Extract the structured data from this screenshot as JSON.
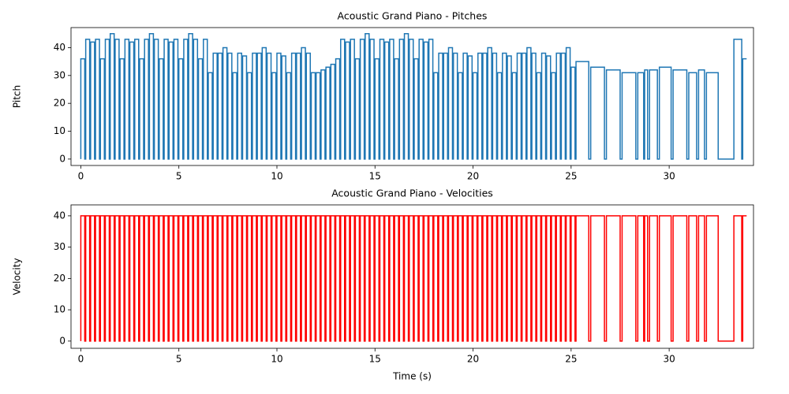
{
  "chart_data": [
    {
      "type": "step",
      "title": "Acoustic Grand Piano - Pitches",
      "y_label": "Pitch",
      "xlim": [
        -0.5,
        34.3
      ],
      "ylim": [
        -2.3,
        47.2
      ],
      "xticks": [
        0,
        5,
        10,
        15,
        20,
        25,
        30
      ],
      "yticks": [
        0,
        10,
        20,
        30,
        40
      ],
      "color": "#1f77b4",
      "x": [
        0,
        0,
        0.2,
        0.25,
        0.45,
        0.5,
        0.7,
        0.75,
        0.95,
        1,
        1.2,
        1.25,
        1.45,
        1.5,
        1.7,
        1.75,
        1.95,
        2,
        2.2,
        2.25,
        2.45,
        2.5,
        2.7,
        2.75,
        2.95,
        3,
        3.2,
        3.25,
        3.45,
        3.5,
        3.7,
        3.75,
        3.95,
        4,
        4.2,
        4.25,
        4.45,
        4.5,
        4.7,
        4.75,
        4.95,
        5,
        5.2,
        5.25,
        5.45,
        5.5,
        5.7,
        5.75,
        5.95,
        6,
        6.2,
        6.25,
        6.45,
        6.5,
        6.7,
        6.75,
        6.95,
        7,
        7.2,
        7.25,
        7.45,
        7.5,
        7.7,
        7.75,
        7.95,
        8,
        8.2,
        8.25,
        8.45,
        8.5,
        8.7,
        8.75,
        8.95,
        9,
        9.2,
        9.25,
        9.45,
        9.5,
        9.7,
        9.75,
        9.95,
        10,
        10.2,
        10.25,
        10.45,
        10.5,
        10.7,
        10.75,
        10.95,
        11,
        11.2,
        11.25,
        11.45,
        11.5,
        11.7,
        11.75,
        11.95,
        12,
        12.2,
        12.25,
        12.45,
        12.5,
        12.7,
        12.75,
        12.95,
        13,
        13.2,
        13.25,
        13.45,
        13.5,
        13.7,
        13.75,
        13.95,
        14,
        14.2,
        14.25,
        14.45,
        14.5,
        14.7,
        14.75,
        14.95,
        15,
        15.2,
        15.25,
        15.45,
        15.5,
        15.7,
        15.75,
        15.95,
        16,
        16.2,
        16.25,
        16.45,
        16.5,
        16.7,
        16.75,
        16.95,
        17,
        17.2,
        17.25,
        17.45,
        17.5,
        17.7,
        17.75,
        17.95,
        18,
        18.2,
        18.25,
        18.45,
        18.5,
        18.7,
        18.75,
        18.95,
        19,
        19.2,
        19.25,
        19.45,
        19.5,
        19.7,
        19.75,
        19.95,
        20,
        20.2,
        20.25,
        20.45,
        20.5,
        20.7,
        20.75,
        20.95,
        21,
        21.2,
        21.25,
        21.45,
        21.5,
        21.7,
        21.75,
        21.95,
        22,
        22.2,
        22.25,
        22.45,
        22.5,
        22.7,
        22.75,
        22.95,
        23,
        23.2,
        23.25,
        23.45,
        23.5,
        23.7,
        23.75,
        23.95,
        24,
        24.2,
        24.25,
        24.45,
        24.5,
        24.7,
        24.75,
        24.95,
        25,
        25.2,
        25.25,
        25.9,
        26,
        26.7,
        26.8,
        27.5,
        27.6,
        28.3,
        28.4,
        28.7,
        28.75,
        28.9,
        29,
        29.4,
        29.5,
        30.1,
        30.2,
        30.9,
        31,
        31.4,
        31.5,
        31.8,
        31.9,
        32.5,
        33.3,
        33.7,
        33.75,
        33.95
      ],
      "values": [
        0,
        36,
        0,
        43,
        0,
        42,
        0,
        43,
        0,
        36,
        0,
        43,
        0,
        45,
        0,
        43,
        0,
        36,
        0,
        43,
        0,
        42,
        0,
        43,
        0,
        36,
        0,
        43,
        0,
        45,
        0,
        43,
        0,
        36,
        0,
        43,
        0,
        42,
        0,
        43,
        0,
        36,
        0,
        43,
        0,
        45,
        0,
        43,
        0,
        36,
        0,
        43,
        0,
        31,
        0,
        38,
        0,
        38,
        0,
        40,
        0,
        38,
        0,
        31,
        0,
        38,
        0,
        37,
        0,
        31,
        0,
        38,
        0,
        38,
        0,
        40,
        0,
        38,
        0,
        31,
        0,
        38,
        0,
        37,
        0,
        31,
        0,
        38,
        0,
        38,
        0,
        40,
        0,
        38,
        0,
        31,
        0,
        31,
        0,
        32,
        0,
        33,
        0,
        34,
        0,
        36,
        0,
        43,
        0,
        42,
        0,
        43,
        0,
        36,
        0,
        43,
        0,
        45,
        0,
        43,
        0,
        36,
        0,
        43,
        0,
        42,
        0,
        43,
        0,
        36,
        0,
        43,
        0,
        45,
        0,
        43,
        0,
        36,
        0,
        43,
        0,
        42,
        0,
        43,
        0,
        31,
        0,
        38,
        0,
        38,
        0,
        40,
        0,
        38,
        0,
        31,
        0,
        38,
        0,
        37,
        0,
        31,
        0,
        38,
        0,
        38,
        0,
        40,
        0,
        38,
        0,
        31,
        0,
        38,
        0,
        37,
        0,
        31,
        0,
        38,
        0,
        38,
        0,
        40,
        0,
        38,
        0,
        31,
        0,
        38,
        0,
        37,
        0,
        31,
        0,
        38,
        0,
        38,
        0,
        40,
        0,
        33,
        0,
        35,
        0,
        33,
        0,
        32,
        0,
        31,
        0,
        31,
        0,
        32,
        0,
        32,
        0,
        33,
        0,
        32,
        0,
        31,
        0,
        32,
        0,
        31,
        0,
        43,
        0,
        36,
        36
      ]
    },
    {
      "type": "step",
      "title": "Acoustic Grand Piano - Velocities",
      "y_label": "Velocity",
      "x_label": "Time (s)",
      "xlim": [
        -0.5,
        34.3
      ],
      "ylim": [
        -2.3,
        43.5
      ],
      "xticks": [
        0,
        5,
        10,
        15,
        20,
        25,
        30
      ],
      "yticks": [
        0,
        10,
        20,
        30,
        40
      ],
      "color": "#ff0000",
      "x": [
        0,
        0,
        0.2,
        0.25,
        0.45,
        0.5,
        0.7,
        0.75,
        0.95,
        1,
        1.2,
        1.25,
        1.45,
        1.5,
        1.7,
        1.75,
        1.95,
        2,
        2.2,
        2.25,
        2.45,
        2.5,
        2.7,
        2.75,
        2.95,
        3,
        3.2,
        3.25,
        3.45,
        3.5,
        3.7,
        3.75,
        3.95,
        4,
        4.2,
        4.25,
        4.45,
        4.5,
        4.7,
        4.75,
        4.95,
        5,
        5.2,
        5.25,
        5.45,
        5.5,
        5.7,
        5.75,
        5.95,
        6,
        6.2,
        6.25,
        6.45,
        6.5,
        6.7,
        6.75,
        6.95,
        7,
        7.2,
        7.25,
        7.45,
        7.5,
        7.7,
        7.75,
        7.95,
        8,
        8.2,
        8.25,
        8.45,
        8.5,
        8.7,
        8.75,
        8.95,
        9,
        9.2,
        9.25,
        9.45,
        9.5,
        9.7,
        9.75,
        9.95,
        10,
        10.2,
        10.25,
        10.45,
        10.5,
        10.7,
        10.75,
        10.95,
        11,
        11.2,
        11.25,
        11.45,
        11.5,
        11.7,
        11.75,
        11.95,
        12,
        12.2,
        12.25,
        12.45,
        12.5,
        12.7,
        12.75,
        12.95,
        13,
        13.2,
        13.25,
        13.45,
        13.5,
        13.7,
        13.75,
        13.95,
        14,
        14.2,
        14.25,
        14.45,
        14.5,
        14.7,
        14.75,
        14.95,
        15,
        15.2,
        15.25,
        15.45,
        15.5,
        15.7,
        15.75,
        15.95,
        16,
        16.2,
        16.25,
        16.45,
        16.5,
        16.7,
        16.75,
        16.95,
        17,
        17.2,
        17.25,
        17.45,
        17.5,
        17.7,
        17.75,
        17.95,
        18,
        18.2,
        18.25,
        18.45,
        18.5,
        18.7,
        18.75,
        18.95,
        19,
        19.2,
        19.25,
        19.45,
        19.5,
        19.7,
        19.75,
        19.95,
        20,
        20.2,
        20.25,
        20.45,
        20.5,
        20.7,
        20.75,
        20.95,
        21,
        21.2,
        21.25,
        21.45,
        21.5,
        21.7,
        21.75,
        21.95,
        22,
        22.2,
        22.25,
        22.45,
        22.5,
        22.7,
        22.75,
        22.95,
        23,
        23.2,
        23.25,
        23.45,
        23.5,
        23.7,
        23.75,
        23.95,
        24,
        24.2,
        24.25,
        24.45,
        24.5,
        24.7,
        24.75,
        24.95,
        25,
        25.2,
        25.25,
        25.9,
        26,
        26.7,
        26.8,
        27.5,
        27.6,
        28.3,
        28.4,
        28.7,
        28.75,
        28.9,
        29,
        29.4,
        29.5,
        30.1,
        30.2,
        30.9,
        31,
        31.4,
        31.5,
        31.8,
        31.9,
        32.5,
        33.3,
        33.7,
        33.75,
        33.95
      ],
      "values": [
        0,
        40,
        0,
        40,
        0,
        40,
        0,
        40,
        0,
        40,
        0,
        40,
        0,
        40,
        0,
        40,
        0,
        40,
        0,
        40,
        0,
        40,
        0,
        40,
        0,
        40,
        0,
        40,
        0,
        40,
        0,
        40,
        0,
        40,
        0,
        40,
        0,
        40,
        0,
        40,
        0,
        40,
        0,
        40,
        0,
        40,
        0,
        40,
        0,
        40,
        0,
        40,
        0,
        40,
        0,
        40,
        0,
        40,
        0,
        40,
        0,
        40,
        0,
        40,
        0,
        40,
        0,
        40,
        0,
        40,
        0,
        40,
        0,
        40,
        0,
        40,
        0,
        40,
        0,
        40,
        0,
        40,
        0,
        40,
        0,
        40,
        0,
        40,
        0,
        40,
        0,
        40,
        0,
        40,
        0,
        40,
        0,
        40,
        0,
        40,
        0,
        40,
        0,
        40,
        0,
        40,
        0,
        40,
        0,
        40,
        0,
        40,
        0,
        40,
        0,
        40,
        0,
        40,
        0,
        40,
        0,
        40,
        0,
        40,
        0,
        40,
        0,
        40,
        0,
        40,
        0,
        40,
        0,
        40,
        0,
        40,
        0,
        40,
        0,
        40,
        0,
        40,
        0,
        40,
        0,
        40,
        0,
        40,
        0,
        40,
        0,
        40,
        0,
        40,
        0,
        40,
        0,
        40,
        0,
        40,
        0,
        40,
        0,
        40,
        0,
        40,
        0,
        40,
        0,
        40,
        0,
        40,
        0,
        40,
        0,
        40,
        0,
        40,
        0,
        40,
        0,
        40,
        0,
        40,
        0,
        40,
        0,
        40,
        0,
        40,
        0,
        40,
        0,
        40,
        0,
        40,
        0,
        40,
        0,
        40,
        0,
        40,
        0,
        40,
        0,
        40,
        0,
        40,
        0,
        40,
        0,
        40,
        0,
        40,
        0,
        40,
        0,
        40,
        0,
        40,
        0,
        40,
        0,
        40,
        0,
        40,
        0,
        40,
        0,
        40,
        40
      ]
    }
  ]
}
